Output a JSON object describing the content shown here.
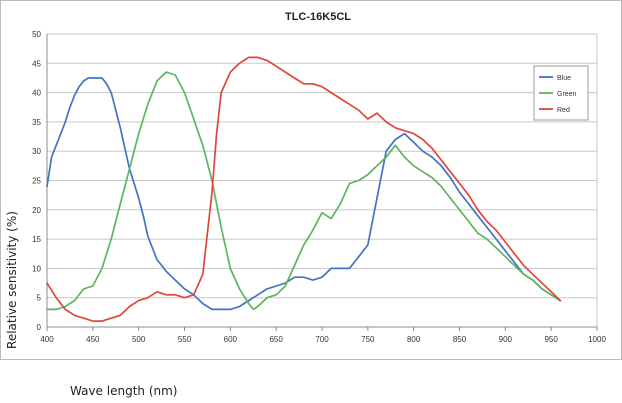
{
  "chart_data": {
    "type": "line",
    "title": "TLC-16K5CL",
    "xlabel": "Wave length (nm)",
    "ylabel": "Relative sensitivity (%)",
    "xlim": [
      400,
      1000
    ],
    "ylim": [
      0,
      50
    ],
    "x_ticks": [
      "400",
      "450",
      "500",
      "550",
      "600",
      "650",
      "700",
      "750",
      "800",
      "850",
      "900",
      "950",
      "1000"
    ],
    "y_ticks": [
      "0",
      "5",
      "10",
      "15",
      "20",
      "25",
      "30",
      "35",
      "40",
      "45",
      "50"
    ],
    "grid": "horizontal",
    "legend_position": "right",
    "series": [
      {
        "name": "Blue",
        "color": "#4472c4",
        "points": [
          [
            400,
            24
          ],
          [
            405,
            29
          ],
          [
            410,
            31
          ],
          [
            415,
            33
          ],
          [
            420,
            35
          ],
          [
            425,
            37.5
          ],
          [
            430,
            39.5
          ],
          [
            435,
            41
          ],
          [
            440,
            42
          ],
          [
            445,
            42.5
          ],
          [
            450,
            42.5
          ],
          [
            455,
            42.5
          ],
          [
            460,
            42.5
          ],
          [
            465,
            41.5
          ],
          [
            470,
            40
          ],
          [
            475,
            37
          ],
          [
            480,
            34
          ],
          [
            490,
            27
          ],
          [
            500,
            22
          ],
          [
            505,
            19
          ],
          [
            510,
            15.5
          ],
          [
            520,
            11.5
          ],
          [
            530,
            9.5
          ],
          [
            540,
            8
          ],
          [
            550,
            6.5
          ],
          [
            560,
            5.5
          ],
          [
            570,
            4
          ],
          [
            580,
            3
          ],
          [
            590,
            3
          ],
          [
            600,
            3
          ],
          [
            610,
            3.5
          ],
          [
            620,
            4.5
          ],
          [
            630,
            5.5
          ],
          [
            640,
            6.5
          ],
          [
            650,
            7
          ],
          [
            660,
            7.5
          ],
          [
            670,
            8.5
          ],
          [
            680,
            8.5
          ],
          [
            690,
            8
          ],
          [
            700,
            8.5
          ],
          [
            710,
            10
          ],
          [
            720,
            10
          ],
          [
            730,
            10
          ],
          [
            740,
            12
          ],
          [
            750,
            14
          ],
          [
            760,
            22
          ],
          [
            770,
            30
          ],
          [
            780,
            32
          ],
          [
            790,
            33
          ],
          [
            800,
            31.5
          ],
          [
            810,
            30
          ],
          [
            820,
            29
          ],
          [
            830,
            27.5
          ],
          [
            840,
            25.5
          ],
          [
            850,
            23
          ],
          [
            860,
            21
          ],
          [
            870,
            19
          ],
          [
            880,
            17
          ],
          [
            890,
            15
          ],
          [
            900,
            13
          ],
          [
            910,
            11
          ],
          [
            920,
            9
          ],
          [
            930,
            8
          ],
          [
            940,
            6.5
          ],
          [
            950,
            5.5
          ],
          [
            960,
            4.5
          ]
        ]
      },
      {
        "name": "Green",
        "color": "#5fb55f",
        "points": [
          [
            400,
            3
          ],
          [
            410,
            3
          ],
          [
            420,
            3.5
          ],
          [
            430,
            4.5
          ],
          [
            440,
            6.5
          ],
          [
            450,
            7
          ],
          [
            460,
            10
          ],
          [
            470,
            15
          ],
          [
            480,
            21
          ],
          [
            490,
            27
          ],
          [
            500,
            33
          ],
          [
            510,
            38
          ],
          [
            520,
            42
          ],
          [
            530,
            43.5
          ],
          [
            540,
            43
          ],
          [
            550,
            40
          ],
          [
            560,
            35.5
          ],
          [
            570,
            31
          ],
          [
            580,
            25
          ],
          [
            590,
            17
          ],
          [
            600,
            10
          ],
          [
            610,
            6.5
          ],
          [
            620,
            4
          ],
          [
            625,
            3
          ],
          [
            630,
            3.5
          ],
          [
            640,
            5
          ],
          [
            650,
            5.5
          ],
          [
            660,
            7
          ],
          [
            670,
            10.5
          ],
          [
            680,
            14
          ],
          [
            690,
            16.5
          ],
          [
            700,
            19.5
          ],
          [
            705,
            19
          ],
          [
            710,
            18.5
          ],
          [
            720,
            21
          ],
          [
            730,
            24.5
          ],
          [
            740,
            25
          ],
          [
            750,
            26
          ],
          [
            760,
            27.5
          ],
          [
            770,
            29
          ],
          [
            780,
            31
          ],
          [
            790,
            29
          ],
          [
            800,
            27.5
          ],
          [
            810,
            26.5
          ],
          [
            820,
            25.5
          ],
          [
            830,
            24
          ],
          [
            840,
            22
          ],
          [
            850,
            20
          ],
          [
            860,
            18
          ],
          [
            870,
            16
          ],
          [
            880,
            15
          ],
          [
            890,
            13.5
          ],
          [
            900,
            12
          ],
          [
            910,
            10.5
          ],
          [
            920,
            9
          ],
          [
            930,
            8
          ],
          [
            940,
            6.5
          ],
          [
            950,
            5.5
          ],
          [
            960,
            4.5
          ]
        ]
      },
      {
        "name": "Red",
        "color": "#e0463c",
        "points": [
          [
            400,
            7.5
          ],
          [
            410,
            5
          ],
          [
            420,
            3
          ],
          [
            430,
            2
          ],
          [
            440,
            1.5
          ],
          [
            450,
            1
          ],
          [
            460,
            1
          ],
          [
            470,
            1.5
          ],
          [
            480,
            2
          ],
          [
            490,
            3.5
          ],
          [
            500,
            4.5
          ],
          [
            510,
            5
          ],
          [
            520,
            6
          ],
          [
            530,
            5.5
          ],
          [
            540,
            5.5
          ],
          [
            550,
            5
          ],
          [
            560,
            5.5
          ],
          [
            570,
            9
          ],
          [
            580,
            23
          ],
          [
            585,
            33
          ],
          [
            590,
            40
          ],
          [
            600,
            43.5
          ],
          [
            610,
            45
          ],
          [
            620,
            46
          ],
          [
            630,
            46
          ],
          [
            640,
            45.5
          ],
          [
            650,
            44.5
          ],
          [
            660,
            43.5
          ],
          [
            670,
            42.5
          ],
          [
            680,
            41.5
          ],
          [
            690,
            41.5
          ],
          [
            700,
            41
          ],
          [
            710,
            40
          ],
          [
            720,
            39
          ],
          [
            730,
            38
          ],
          [
            740,
            37
          ],
          [
            750,
            35.5
          ],
          [
            760,
            36.5
          ],
          [
            770,
            35
          ],
          [
            780,
            34
          ],
          [
            790,
            33.5
          ],
          [
            800,
            33
          ],
          [
            810,
            32
          ],
          [
            820,
            30.5
          ],
          [
            830,
            28.5
          ],
          [
            840,
            26.5
          ],
          [
            850,
            24.5
          ],
          [
            860,
            22.5
          ],
          [
            870,
            20
          ],
          [
            880,
            18
          ],
          [
            890,
            16.5
          ],
          [
            900,
            14.5
          ],
          [
            910,
            12.5
          ],
          [
            920,
            10.5
          ],
          [
            930,
            9
          ],
          [
            940,
            7.5
          ],
          [
            950,
            6
          ],
          [
            960,
            4.5
          ]
        ]
      }
    ]
  }
}
